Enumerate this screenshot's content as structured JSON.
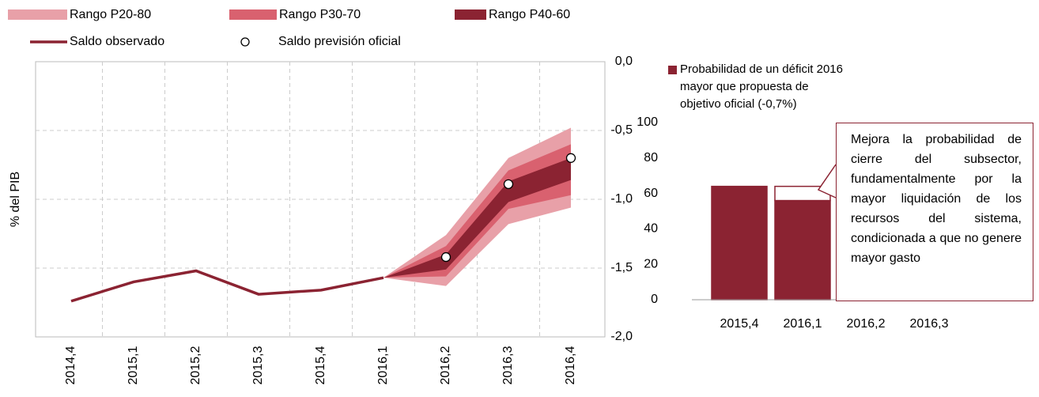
{
  "chart_data": [
    {
      "type": "fan",
      "y_label": "% del PIB",
      "categories": [
        "2014,4",
        "2015,1",
        "2015,2",
        "2015,3",
        "2015,4",
        "2016,1",
        "2016,2",
        "2016,3",
        "2016,4"
      ],
      "bands": [
        {
          "name": "Rango P20-80",
          "color": "#e8a0a8",
          "lower": [
            null,
            null,
            null,
            null,
            null,
            -1.57,
            -1.63,
            -1.18,
            -1.06
          ],
          "upper": [
            null,
            null,
            null,
            null,
            null,
            -1.57,
            -1.26,
            -0.7,
            -0.48
          ]
        },
        {
          "name": "Rango P30-70",
          "color": "#d9616f",
          "lower": [
            null,
            null,
            null,
            null,
            null,
            -1.57,
            -1.56,
            -1.07,
            -0.97
          ],
          "upper": [
            null,
            null,
            null,
            null,
            null,
            -1.57,
            -1.34,
            -0.79,
            -0.6
          ]
        },
        {
          "name": "Rango P40-60",
          "color": "#8b2332",
          "lower": [
            null,
            null,
            null,
            null,
            null,
            -1.57,
            -1.51,
            -1.02,
            -0.86
          ],
          "upper": [
            null,
            null,
            null,
            null,
            null,
            -1.57,
            -1.4,
            -0.87,
            -0.7
          ]
        }
      ],
      "series": [
        {
          "name": "Saldo observado",
          "color": "#8b2332",
          "style": "line",
          "values": [
            -1.74,
            -1.6,
            -1.52,
            -1.69,
            -1.66,
            -1.57,
            null,
            null,
            null
          ]
        },
        {
          "name": "Saldo previsión oficial",
          "color": "#ffffff",
          "style": "marker",
          "values": [
            null,
            null,
            null,
            null,
            null,
            null,
            -1.42,
            -0.89,
            -0.7
          ]
        }
      ],
      "ylim": [
        -2.0,
        0.0
      ],
      "yticks": [
        {
          "value": 0.0,
          "label": "0,0"
        },
        {
          "value": -0.5,
          "label": "-0,5"
        },
        {
          "value": -1.0,
          "label": "-1,0"
        },
        {
          "value": -1.5,
          "label": "-1,5"
        },
        {
          "value": -2.0,
          "label": "-2,0"
        }
      ],
      "grid": true
    },
    {
      "type": "bar",
      "stacked": true,
      "categories": [
        "2015,4",
        "2016,1",
        "2016,2",
        "2016,3"
      ],
      "series": [
        {
          "name": "Probabilidad de un déficit 2016 mayor que propuesta de objetivo oficial (-0,7%)",
          "color": "#8b2332",
          "values": [
            64,
            56,
            null,
            null
          ]
        },
        {
          "color": "#ffffff",
          "values": [
            null,
            8,
            null,
            null
          ]
        }
      ],
      "ylim": [
        0,
        100
      ],
      "yticks": [
        0,
        20,
        40,
        60,
        80,
        100
      ],
      "annotation": "Mejora la probabilidad de cierre del subsector, fundamentalmente por la mayor liquidación de los recursos del sistema, condicionada a que no genere mayor gasto"
    }
  ]
}
